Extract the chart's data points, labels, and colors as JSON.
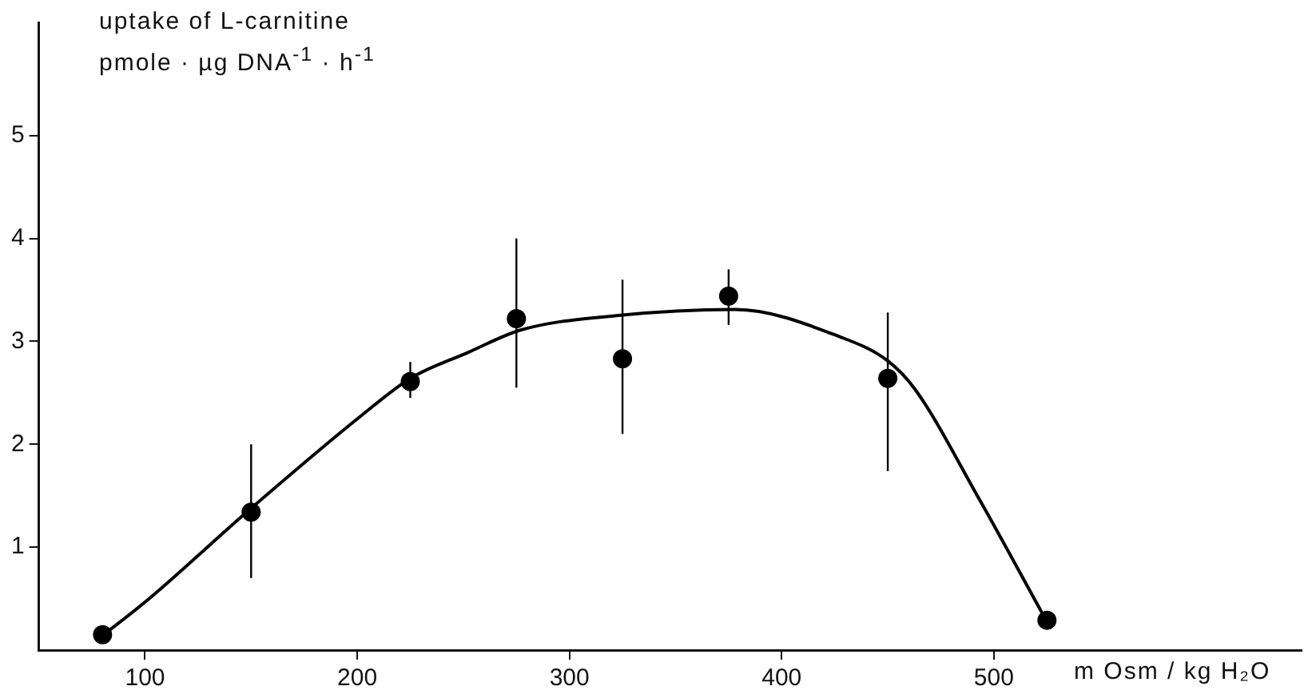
{
  "chart_data": {
    "type": "scatter",
    "ylabel": "uptake of L-carnitine\npmole · µg DNA$^{-1}$ · h$^{-1}$",
    "xlabel": "m Osm / kg H₂O",
    "xlim": [
      50,
      645
    ],
    "xticks": [
      100,
      200,
      300,
      400,
      500
    ],
    "ylim": [
      0,
      6.1
    ],
    "yticks": [
      1,
      2,
      3,
      4,
      5
    ],
    "grid": false,
    "legend": false,
    "marker": "circle",
    "series": [
      {
        "type": "scatter",
        "color": "#000000",
        "x": [
          80,
          150,
          225,
          275,
          325,
          375,
          450,
          525
        ],
        "values": [
          0.15,
          1.34,
          2.61,
          3.22,
          2.83,
          3.44,
          2.64,
          0.29
        ],
        "errors": [
          null,
          [
            0.7,
            2.0
          ],
          [
            2.45,
            2.8
          ],
          [
            2.55,
            4.0
          ],
          [
            2.1,
            3.6
          ],
          [
            3.16,
            3.7
          ],
          [
            1.74,
            3.28
          ],
          null
        ]
      },
      {
        "type": "line",
        "color": "#000000",
        "marker": "none",
        "line_style": "solid",
        "x": [
          80,
          102,
          149,
          202,
          225,
          252,
          277,
          322,
          378,
          428,
          450,
          463,
          493,
          523
        ],
        "values": [
          0.14,
          0.5,
          1.36,
          2.28,
          2.64,
          2.89,
          3.11,
          3.25,
          3.31,
          3.04,
          2.81,
          2.53,
          1.47,
          0.35
        ]
      }
    ]
  }
}
